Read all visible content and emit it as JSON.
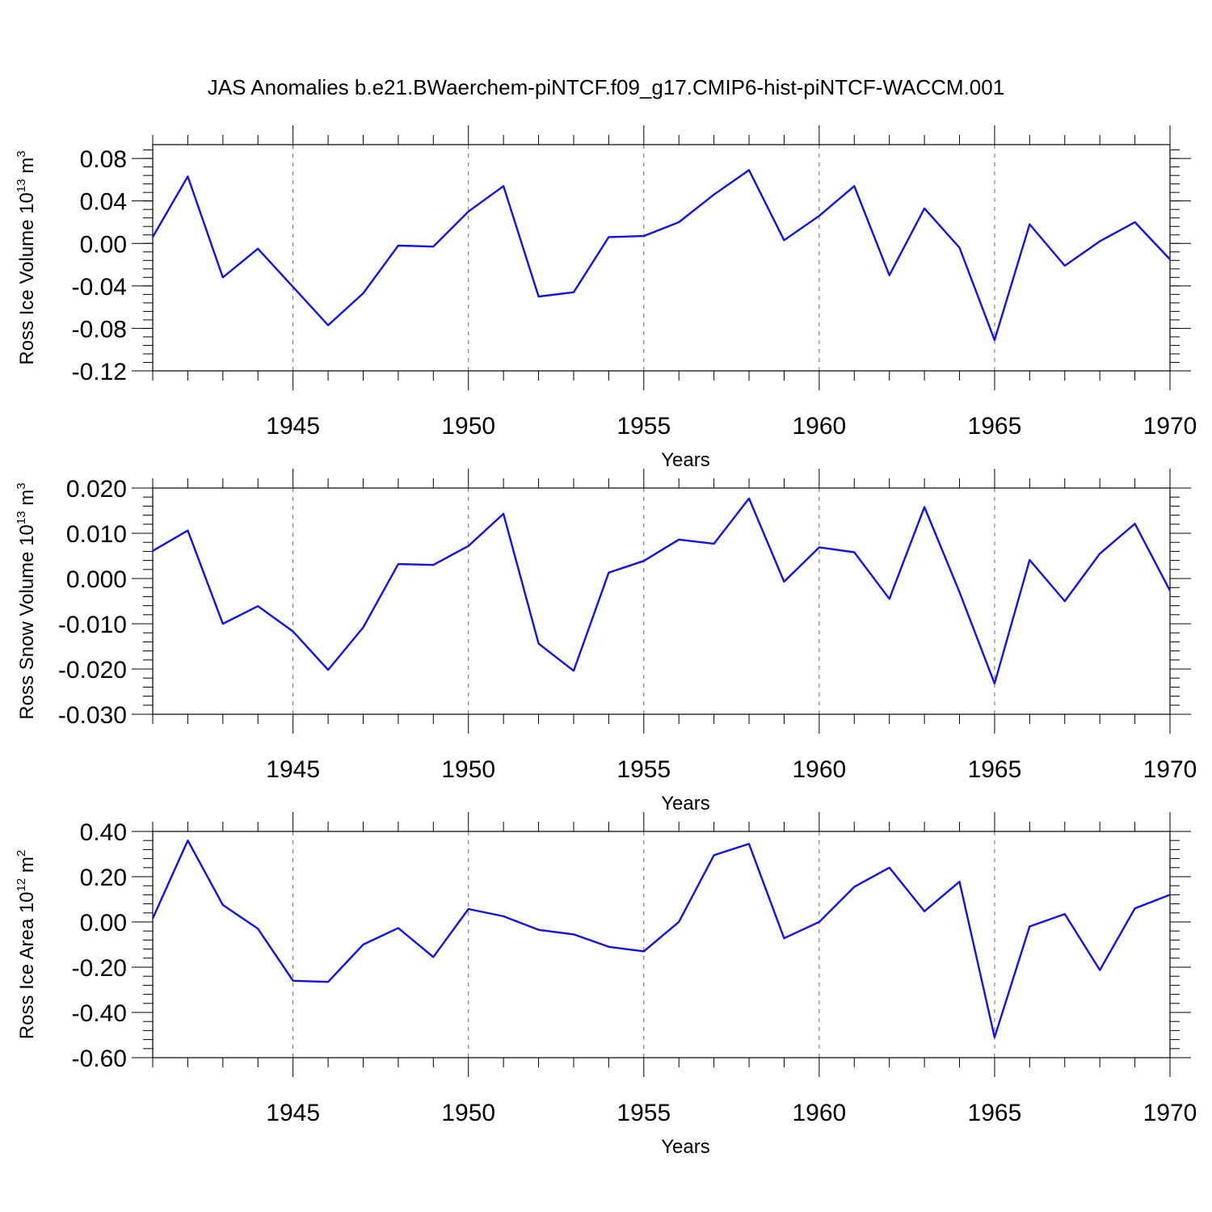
{
  "title": "JAS Anomalies b.e21.BWaerchem-piNTCF.f09_g17.CMIP6-hist-piNTCF-WACCM.001",
  "colors": {
    "line": "#1010ee",
    "frame": "#000000",
    "background": "#ffffff"
  },
  "chart_data": [
    {
      "type": "line",
      "name": "ross-ice-volume",
      "ylabel": {
        "text": "Ross Ice Volume 10",
        "exponent": "13",
        "unit": " m",
        "unit_exponent": "3"
      },
      "xlabel": "Years",
      "xlim": [
        1941,
        1970
      ],
      "ylim": [
        -0.12,
        0.093
      ],
      "yticks": [
        -0.12,
        -0.08,
        -0.04,
        0.0,
        0.04,
        0.08
      ],
      "ytick_labels": [
        "-0.12",
        "-0.08",
        "-0.04",
        "0.00",
        "0.04",
        "0.08"
      ],
      "yminor_step": 0.008,
      "xticks": [
        1945,
        1950,
        1955,
        1960,
        1965,
        1970
      ],
      "xtick_labels": [
        "1945",
        "1950",
        "1955",
        "1960",
        "1965",
        "1970"
      ],
      "grid_x": [
        1945,
        1950,
        1955,
        1960,
        1965
      ],
      "x": [
        1941,
        1942,
        1943,
        1944,
        1945,
        1946,
        1947,
        1948,
        1949,
        1950,
        1951,
        1952,
        1953,
        1954,
        1955,
        1956,
        1957,
        1958,
        1959,
        1960,
        1961,
        1962,
        1963,
        1964,
        1965,
        1966,
        1967,
        1968,
        1969,
        1970
      ],
      "values": [
        0.006,
        0.063,
        -0.032,
        -0.005,
        -0.041,
        -0.077,
        -0.047,
        -0.002,
        -0.003,
        0.03,
        0.054,
        -0.05,
        -0.046,
        0.006,
        0.007,
        0.02,
        0.046,
        0.069,
        0.003,
        0.026,
        0.054,
        -0.03,
        0.033,
        -0.004,
        -0.091,
        0.018,
        -0.021,
        0.002,
        0.02,
        -0.015
      ]
    },
    {
      "type": "line",
      "name": "ross-snow-volume",
      "ylabel": {
        "text": "Ross Snow Volume 10",
        "exponent": "13",
        "unit": " m",
        "unit_exponent": "3"
      },
      "xlabel": "Years",
      "xlim": [
        1941,
        1970
      ],
      "ylim": [
        -0.03,
        0.02
      ],
      "yticks": [
        -0.03,
        -0.02,
        -0.01,
        0.0,
        0.01,
        0.02
      ],
      "ytick_labels": [
        "-0.030",
        "-0.020",
        "-0.010",
        "0.000",
        "0.010",
        "0.020"
      ],
      "yminor_step": 0.002,
      "xticks": [
        1945,
        1950,
        1955,
        1960,
        1965,
        1970
      ],
      "xtick_labels": [
        "1945",
        "1950",
        "1955",
        "1960",
        "1965",
        "1970"
      ],
      "grid_x": [
        1945,
        1950,
        1955,
        1960,
        1965
      ],
      "x": [
        1941,
        1942,
        1943,
        1944,
        1945,
        1946,
        1947,
        1948,
        1949,
        1950,
        1951,
        1952,
        1953,
        1954,
        1955,
        1956,
        1957,
        1958,
        1959,
        1960,
        1961,
        1962,
        1963,
        1964,
        1965,
        1966,
        1967,
        1968,
        1969,
        1970
      ],
      "values": [
        0.0061,
        0.0106,
        -0.01,
        -0.0061,
        -0.0117,
        -0.0202,
        -0.0108,
        0.0032,
        0.003,
        0.0072,
        0.0143,
        -0.0144,
        -0.0204,
        0.0013,
        0.0039,
        0.0086,
        0.0077,
        0.0177,
        -0.0007,
        0.0069,
        0.0058,
        -0.0045,
        0.0158,
        -0.003,
        -0.0232,
        0.0041,
        -0.005,
        0.0055,
        0.0121,
        -0.0027
      ]
    },
    {
      "type": "line",
      "name": "ross-ice-area",
      "ylabel": {
        "text": "Ross Ice Area 10",
        "exponent": "12",
        "unit": " m",
        "unit_exponent": "2"
      },
      "xlabel": "Years",
      "xlim": [
        1941,
        1970
      ],
      "ylim": [
        -0.6,
        0.4
      ],
      "yticks": [
        -0.6,
        -0.4,
        -0.2,
        0.0,
        0.2,
        0.4
      ],
      "ytick_labels": [
        "-0.60",
        "-0.40",
        "-0.20",
        "0.00",
        "0.20",
        "0.40"
      ],
      "yminor_step": 0.04,
      "xticks": [
        1945,
        1950,
        1955,
        1960,
        1965,
        1970
      ],
      "xtick_labels": [
        "1945",
        "1950",
        "1955",
        "1960",
        "1965",
        "1970"
      ],
      "grid_x": [
        1945,
        1950,
        1955,
        1960,
        1965
      ],
      "x": [
        1941,
        1942,
        1943,
        1944,
        1945,
        1946,
        1947,
        1948,
        1949,
        1950,
        1951,
        1952,
        1953,
        1954,
        1955,
        1956,
        1957,
        1958,
        1959,
        1960,
        1961,
        1962,
        1963,
        1964,
        1965,
        1966,
        1967,
        1968,
        1969,
        1970
      ],
      "values": [
        0.015,
        0.36,
        0.075,
        -0.03,
        -0.26,
        -0.265,
        -0.1,
        -0.027,
        -0.155,
        0.057,
        0.025,
        -0.035,
        -0.055,
        -0.11,
        -0.13,
        0.0,
        0.295,
        0.345,
        -0.072,
        0.0,
        0.155,
        0.24,
        0.047,
        0.178,
        -0.51,
        -0.02,
        0.035,
        -0.213,
        0.06,
        0.12
      ]
    }
  ]
}
